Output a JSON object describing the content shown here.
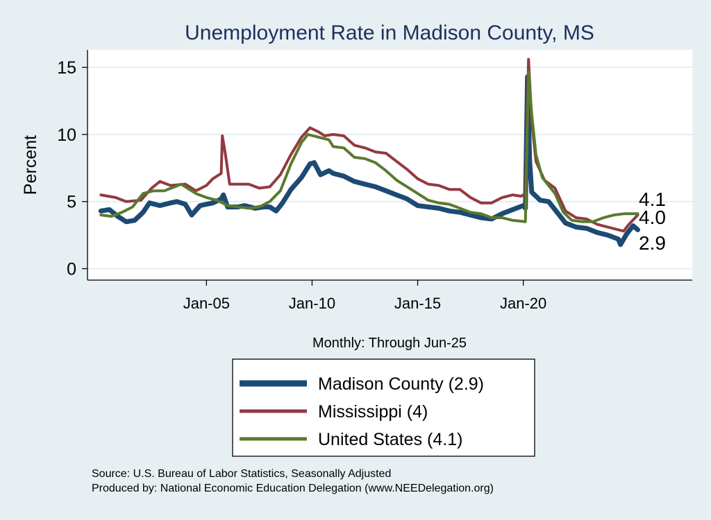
{
  "chart_data": {
    "type": "line",
    "title": "Unemployment Rate in Madison  County, MS",
    "xlabel": "Monthly: Through Jun-25",
    "ylabel": "Percent",
    "ylim": [
      -0.8,
      16.3
    ],
    "xlim": [
      1999.4,
      2028.0
    ],
    "yticks": [
      0,
      5,
      10,
      15
    ],
    "ytick_labels": [
      "0",
      "5",
      "10",
      "15"
    ],
    "xticks": [
      2005.0,
      2010.0,
      2015.0,
      2020.0
    ],
    "xtick_labels": [
      "Jan-05",
      "Jan-10",
      "Jan-15",
      "Jan-20"
    ],
    "grid": true,
    "legend_position": "bottom",
    "series": [
      {
        "name": "Madison  County (2.9)",
        "color": "#1c4a72",
        "end_label": "2.9",
        "points": [
          [
            2000.0,
            4.3
          ],
          [
            2000.4,
            4.4
          ],
          [
            2000.8,
            3.9
          ],
          [
            2001.2,
            3.5
          ],
          [
            2001.6,
            3.6
          ],
          [
            2002.0,
            4.2
          ],
          [
            2002.3,
            4.9
          ],
          [
            2002.8,
            4.7
          ],
          [
            2003.3,
            4.9
          ],
          [
            2003.6,
            5.0
          ],
          [
            2004.0,
            4.8
          ],
          [
            2004.3,
            4.0
          ],
          [
            2004.7,
            4.7
          ],
          [
            2005.3,
            4.9
          ],
          [
            2005.7,
            5.2
          ],
          [
            2005.8,
            5.5
          ],
          [
            2006.0,
            4.6
          ],
          [
            2006.5,
            4.6
          ],
          [
            2006.8,
            4.7
          ],
          [
            2007.3,
            4.5
          ],
          [
            2007.7,
            4.6
          ],
          [
            2008.0,
            4.6
          ],
          [
            2008.3,
            4.3
          ],
          [
            2008.6,
            4.9
          ],
          [
            2009.0,
            5.9
          ],
          [
            2009.5,
            6.8
          ],
          [
            2009.9,
            7.8
          ],
          [
            2010.1,
            7.9
          ],
          [
            2010.4,
            7.0
          ],
          [
            2010.8,
            7.3
          ],
          [
            2011.0,
            7.1
          ],
          [
            2011.5,
            6.9
          ],
          [
            2012.0,
            6.5
          ],
          [
            2012.5,
            6.3
          ],
          [
            2013.0,
            6.1
          ],
          [
            2013.5,
            5.8
          ],
          [
            2014.0,
            5.5
          ],
          [
            2014.5,
            5.2
          ],
          [
            2015.0,
            4.7
          ],
          [
            2015.5,
            4.6
          ],
          [
            2016.0,
            4.5
          ],
          [
            2016.5,
            4.3
          ],
          [
            2017.0,
            4.2
          ],
          [
            2017.5,
            4.0
          ],
          [
            2018.0,
            3.8
          ],
          [
            2018.5,
            3.7
          ],
          [
            2019.0,
            4.1
          ],
          [
            2019.5,
            4.4
          ],
          [
            2020.0,
            4.7
          ],
          [
            2020.1,
            4.5
          ],
          [
            2020.2,
            14.3
          ],
          [
            2020.3,
            8.0
          ],
          [
            2020.4,
            5.7
          ],
          [
            2020.8,
            5.1
          ],
          [
            2021.2,
            5.0
          ],
          [
            2021.6,
            4.2
          ],
          [
            2022.0,
            3.4
          ],
          [
            2022.5,
            3.1
          ],
          [
            2023.0,
            3.0
          ],
          [
            2023.5,
            2.7
          ],
          [
            2024.0,
            2.5
          ],
          [
            2024.5,
            2.2
          ],
          [
            2024.6,
            1.8
          ],
          [
            2024.9,
            2.6
          ],
          [
            2025.2,
            3.2
          ],
          [
            2025.42,
            2.9
          ]
        ]
      },
      {
        "name": "Mississippi (4)",
        "color": "#933a40",
        "end_label": "4.0",
        "points": [
          [
            2000.0,
            5.5
          ],
          [
            2000.7,
            5.3
          ],
          [
            2001.2,
            5.0
          ],
          [
            2001.9,
            5.1
          ],
          [
            2002.4,
            6.0
          ],
          [
            2002.8,
            6.5
          ],
          [
            2003.3,
            6.2
          ],
          [
            2004.0,
            6.3
          ],
          [
            2004.5,
            5.8
          ],
          [
            2005.0,
            6.2
          ],
          [
            2005.3,
            6.7
          ],
          [
            2005.7,
            7.1
          ],
          [
            2005.75,
            9.9
          ],
          [
            2005.9,
            8.5
          ],
          [
            2006.1,
            6.3
          ],
          [
            2007.0,
            6.3
          ],
          [
            2007.5,
            6.0
          ],
          [
            2008.0,
            6.1
          ],
          [
            2008.5,
            7.0
          ],
          [
            2009.0,
            8.5
          ],
          [
            2009.5,
            9.8
          ],
          [
            2009.9,
            10.5
          ],
          [
            2010.3,
            10.2
          ],
          [
            2010.6,
            9.9
          ],
          [
            2011.0,
            10.0
          ],
          [
            2011.5,
            9.9
          ],
          [
            2012.0,
            9.2
          ],
          [
            2012.5,
            9.0
          ],
          [
            2013.0,
            8.7
          ],
          [
            2013.5,
            8.6
          ],
          [
            2014.0,
            8.0
          ],
          [
            2014.5,
            7.4
          ],
          [
            2015.0,
            6.7
          ],
          [
            2015.5,
            6.3
          ],
          [
            2016.0,
            6.2
          ],
          [
            2016.5,
            5.9
          ],
          [
            2017.0,
            5.9
          ],
          [
            2017.5,
            5.3
          ],
          [
            2018.0,
            4.9
          ],
          [
            2018.5,
            4.9
          ],
          [
            2019.0,
            5.3
          ],
          [
            2019.5,
            5.5
          ],
          [
            2019.9,
            5.4
          ],
          [
            2020.1,
            5.6
          ],
          [
            2020.25,
            15.6
          ],
          [
            2020.4,
            11.0
          ],
          [
            2020.6,
            8.0
          ],
          [
            2021.0,
            6.6
          ],
          [
            2021.5,
            6.0
          ],
          [
            2022.0,
            4.3
          ],
          [
            2022.5,
            3.8
          ],
          [
            2023.0,
            3.7
          ],
          [
            2023.5,
            3.3
          ],
          [
            2024.0,
            3.1
          ],
          [
            2024.5,
            2.9
          ],
          [
            2024.75,
            2.8
          ],
          [
            2025.0,
            3.3
          ],
          [
            2025.42,
            4.0
          ]
        ]
      },
      {
        "name": "United States (4.1)",
        "color": "#5a7a2e",
        "end_label": "4.1",
        "points": [
          [
            2000.0,
            4.0
          ],
          [
            2000.5,
            3.9
          ],
          [
            2001.0,
            4.2
          ],
          [
            2001.5,
            4.6
          ],
          [
            2002.0,
            5.6
          ],
          [
            2002.5,
            5.8
          ],
          [
            2003.0,
            5.8
          ],
          [
            2003.5,
            6.1
          ],
          [
            2003.8,
            6.3
          ],
          [
            2004.5,
            5.6
          ],
          [
            2005.0,
            5.3
          ],
          [
            2005.5,
            5.1
          ],
          [
            2006.0,
            4.7
          ],
          [
            2007.0,
            4.5
          ],
          [
            2007.5,
            4.6
          ],
          [
            2008.0,
            5.0
          ],
          [
            2008.5,
            5.8
          ],
          [
            2009.0,
            7.8
          ],
          [
            2009.5,
            9.4
          ],
          [
            2009.8,
            10.0
          ],
          [
            2010.3,
            9.8
          ],
          [
            2010.8,
            9.6
          ],
          [
            2011.0,
            9.1
          ],
          [
            2011.5,
            9.0
          ],
          [
            2012.0,
            8.3
          ],
          [
            2012.5,
            8.2
          ],
          [
            2013.0,
            7.9
          ],
          [
            2013.5,
            7.3
          ],
          [
            2014.0,
            6.6
          ],
          [
            2014.5,
            6.1
          ],
          [
            2015.0,
            5.6
          ],
          [
            2015.5,
            5.1
          ],
          [
            2016.0,
            4.9
          ],
          [
            2016.5,
            4.8
          ],
          [
            2017.0,
            4.5
          ],
          [
            2017.5,
            4.2
          ],
          [
            2018.0,
            4.1
          ],
          [
            2018.5,
            3.8
          ],
          [
            2019.0,
            3.8
          ],
          [
            2019.5,
            3.6
          ],
          [
            2020.1,
            3.5
          ],
          [
            2020.25,
            14.7
          ],
          [
            2020.4,
            11.5
          ],
          [
            2020.6,
            8.5
          ],
          [
            2020.9,
            6.8
          ],
          [
            2021.2,
            6.2
          ],
          [
            2021.5,
            5.6
          ],
          [
            2021.9,
            4.2
          ],
          [
            2022.3,
            3.6
          ],
          [
            2022.8,
            3.5
          ],
          [
            2023.3,
            3.5
          ],
          [
            2023.8,
            3.8
          ],
          [
            2024.3,
            4.0
          ],
          [
            2024.8,
            4.1
          ],
          [
            2025.42,
            4.1
          ]
        ]
      }
    ],
    "notes": [
      "Source: U.S. Bureau of Labor Statistics, Seasonally Adjusted",
      "Produced by: National Economic Education Delegation (www.NEEDelegation.org)"
    ]
  }
}
